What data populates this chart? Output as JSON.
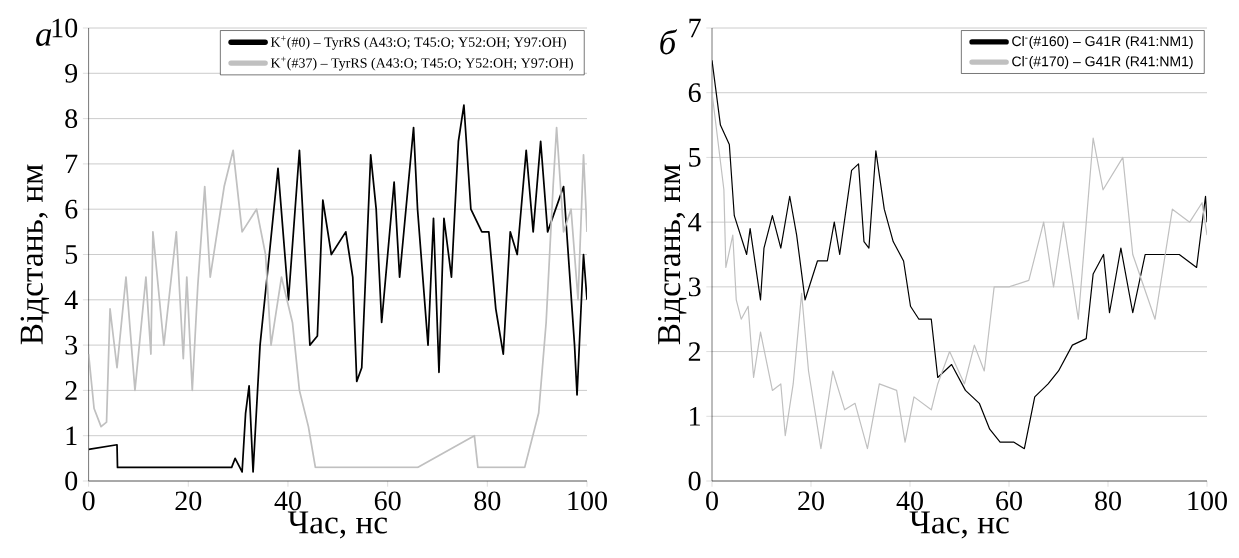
{
  "chart_data": [
    {
      "type": "line",
      "title": "а",
      "xlabel": "Час, нс",
      "ylabel": "Відстань, нм",
      "xlim": [
        0,
        100
      ],
      "ylim": [
        0,
        10
      ],
      "xticks": [
        0,
        20,
        40,
        60,
        80,
        100
      ],
      "yticks": [
        0,
        1,
        2,
        3,
        4,
        5,
        6,
        7,
        8,
        9,
        10
      ],
      "grid": "y",
      "legend": "top right",
      "line_style": "solid",
      "marker": "none",
      "series": [
        {
          "name": "K$^{+}$(#0)  – TyrRS (A43:O; T45:O; Y52:OH; Y97:OH)",
          "color": "#000000",
          "x": [
            0,
            5.7,
            5.8,
            28.7,
            29.4,
            30.8,
            31.5,
            32.2,
            33,
            34.4,
            35.8,
            38,
            40.1,
            42.3,
            44.4,
            45.9,
            47,
            48.7,
            51.6,
            53,
            53.8,
            54.8,
            56.6,
            57.7,
            58.8,
            61.3,
            62.4,
            65.2,
            66,
            68.1,
            69.2,
            70.3,
            71.3,
            72.8,
            74.2,
            75.3,
            76.7,
            78.9,
            80.3,
            81.7,
            83.2,
            84.6,
            86,
            87.8,
            89.2,
            90.7,
            92.1,
            95.3,
            97.5,
            98,
            99.3,
            100
          ],
          "values": [
            0.7,
            0.8,
            0.3,
            0.3,
            0.5,
            0.2,
            1.5,
            2.1,
            0.2,
            3,
            4.5,
            6.9,
            4,
            7.3,
            3,
            3.2,
            6.2,
            5,
            5.5,
            4.5,
            2.2,
            2.5,
            7.2,
            6,
            3.5,
            6.6,
            4.5,
            7.8,
            6,
            3,
            5.8,
            2.4,
            5.8,
            4.5,
            7.5,
            8.3,
            6,
            5.5,
            5.5,
            3.8,
            2.8,
            5.5,
            5,
            7.3,
            5.5,
            7.5,
            5.5,
            6.5,
            3,
            1.9,
            5,
            4
          ]
        },
        {
          "name": "K$^{+}$(#37) – TyrRS (A43:O; T45:O; Y52:OH; Y97:OH)",
          "color": "#c0c0c0",
          "x": [
            0,
            1.1,
            2.5,
            3.6,
            4.3,
            5.7,
            7.5,
            9.3,
            11.5,
            12.5,
            12.9,
            15.1,
            17.6,
            19,
            19.7,
            20.8,
            21.9,
            23.3,
            24.4,
            27.2,
            29,
            30.8,
            33.7,
            35.5,
            36.6,
            38.7,
            40.9,
            42.3,
            44.1,
            45.5,
            66,
            77.4,
            78.1,
            87.5,
            90.3,
            91.8,
            93.2,
            93.9,
            95.3,
            96.8,
            98.2,
            99.3,
            100
          ],
          "values": [
            2.8,
            1.6,
            1.2,
            1.3,
            3.8,
            2.5,
            4.5,
            2,
            4.5,
            2.8,
            5.5,
            3,
            5.5,
            2.7,
            4.5,
            2,
            4.3,
            6.5,
            4.5,
            6.5,
            7.3,
            5.5,
            6,
            5,
            3,
            4.5,
            3.5,
            2,
            1.2,
            0.3,
            0.3,
            1,
            0.3,
            0.3,
            1.5,
            3.5,
            6.5,
            7.8,
            5.5,
            6,
            4,
            7.2,
            5.5
          ]
        }
      ]
    },
    {
      "type": "line",
      "title": "б",
      "xlabel": "Час, нс",
      "ylabel": "Відстань, нм",
      "xlim": [
        0,
        100
      ],
      "ylim": [
        0,
        7
      ],
      "xticks": [
        0,
        20,
        40,
        60,
        80,
        100
      ],
      "yticks": [
        0,
        1,
        2,
        3,
        4,
        5,
        6,
        7
      ],
      "grid": "y",
      "legend": "top right",
      "line_style": "solid",
      "marker": "none",
      "series": [
        {
          "name": "Cl$^{-}$(#160) – G41R (R41:NM1)",
          "color": "#000000",
          "x": [
            0,
            1.7,
            3.5,
            4.5,
            7,
            7.7,
            9.8,
            10.5,
            12.2,
            13.9,
            15.7,
            17.1,
            18.8,
            21.3,
            23.3,
            24.7,
            25.8,
            28.2,
            29.6,
            30.7,
            31.7,
            33.1,
            34.8,
            36.6,
            38.7,
            40.1,
            41.8,
            44.3,
            45.6,
            48.4,
            51.2,
            54,
            56.1,
            58.2,
            61,
            63.1,
            65.2,
            67.9,
            70,
            72.8,
            75.6,
            77,
            79.1,
            80.3,
            82.6,
            85,
            87.5,
            90.2,
            94.4,
            97.9,
            99.7,
            100
          ],
          "values": [
            6.5,
            5.5,
            5.2,
            4.1,
            3.5,
            3.9,
            2.8,
            3.6,
            4.1,
            3.6,
            4.4,
            3.8,
            2.8,
            3.4,
            3.4,
            4,
            3.5,
            4.8,
            4.9,
            3.7,
            3.6,
            5.1,
            4.2,
            3.7,
            3.4,
            2.7,
            2.5,
            2.5,
            1.6,
            1.8,
            1.4,
            1.2,
            0.8,
            0.6,
            0.6,
            0.5,
            1.3,
            1.5,
            1.7,
            2.1,
            2.2,
            3.2,
            3.5,
            2.6,
            3.6,
            2.6,
            3.5,
            3.5,
            3.5,
            3.3,
            4.4,
            4
          ]
        },
        {
          "name": "Cl$^{-}$(#170) – G41R (R41:NM1)",
          "color": "#c0c0c0",
          "x": [
            0,
            2.4,
            2.8,
            4.2,
            4.9,
            5.9,
            7.3,
            8.4,
            9.8,
            12.2,
            13.9,
            14.8,
            16.4,
            18.1,
            19.5,
            22,
            24.4,
            26.8,
            28.9,
            31.4,
            33.8,
            37.3,
            39,
            40.8,
            44.3,
            45.6,
            48,
            51,
            53,
            55,
            57,
            60,
            64,
            67,
            69,
            71,
            74,
            77,
            79,
            83,
            85,
            89.5,
            93,
            96.5,
            99,
            100
          ],
          "values": [
            6,
            4.5,
            3.3,
            3.8,
            2.8,
            2.5,
            2.7,
            1.6,
            2.3,
            1.4,
            1.5,
            0.7,
            1.5,
            2.9,
            1.7,
            0.5,
            1.7,
            1.1,
            1.2,
            0.5,
            1.5,
            1.4,
            0.6,
            1.3,
            1.1,
            1.5,
            2,
            1.5,
            2.1,
            1.7,
            3,
            3,
            3.1,
            4,
            3,
            4,
            2.5,
            5.3,
            4.5,
            5,
            3.5,
            2.5,
            4.2,
            4,
            4.3,
            3.8
          ]
        }
      ]
    }
  ]
}
